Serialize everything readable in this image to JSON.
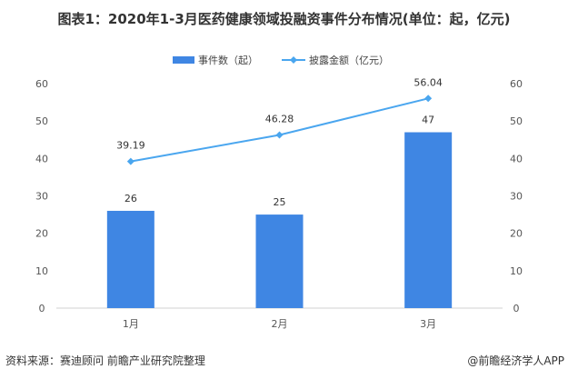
{
  "chart_data": {
    "type": "bar+line",
    "title": "图表1：2020年1-3月医药健康领域投融资事件分布情况(单位：起，亿元)",
    "categories": [
      "1月",
      "2月",
      "3月"
    ],
    "series": [
      {
        "name": "事件数（起）",
        "type": "bar",
        "axis": "left",
        "values": [
          26,
          25,
          47
        ],
        "color": "#3f86e3"
      },
      {
        "name": "披露金额（亿元）",
        "type": "line",
        "axis": "right",
        "values": [
          39.19,
          46.28,
          56.04
        ],
        "color": "#4aa6ef"
      }
    ],
    "ylim": [
      0,
      60
    ],
    "y2lim": [
      0,
      60
    ],
    "yticks": [
      0,
      10,
      20,
      30,
      40,
      50,
      60
    ],
    "legend": "top",
    "grid": false
  },
  "source": "资料来源：赛迪顾问 前瞻产业研究院整理",
  "credit": "@前瞻经济学人APP"
}
